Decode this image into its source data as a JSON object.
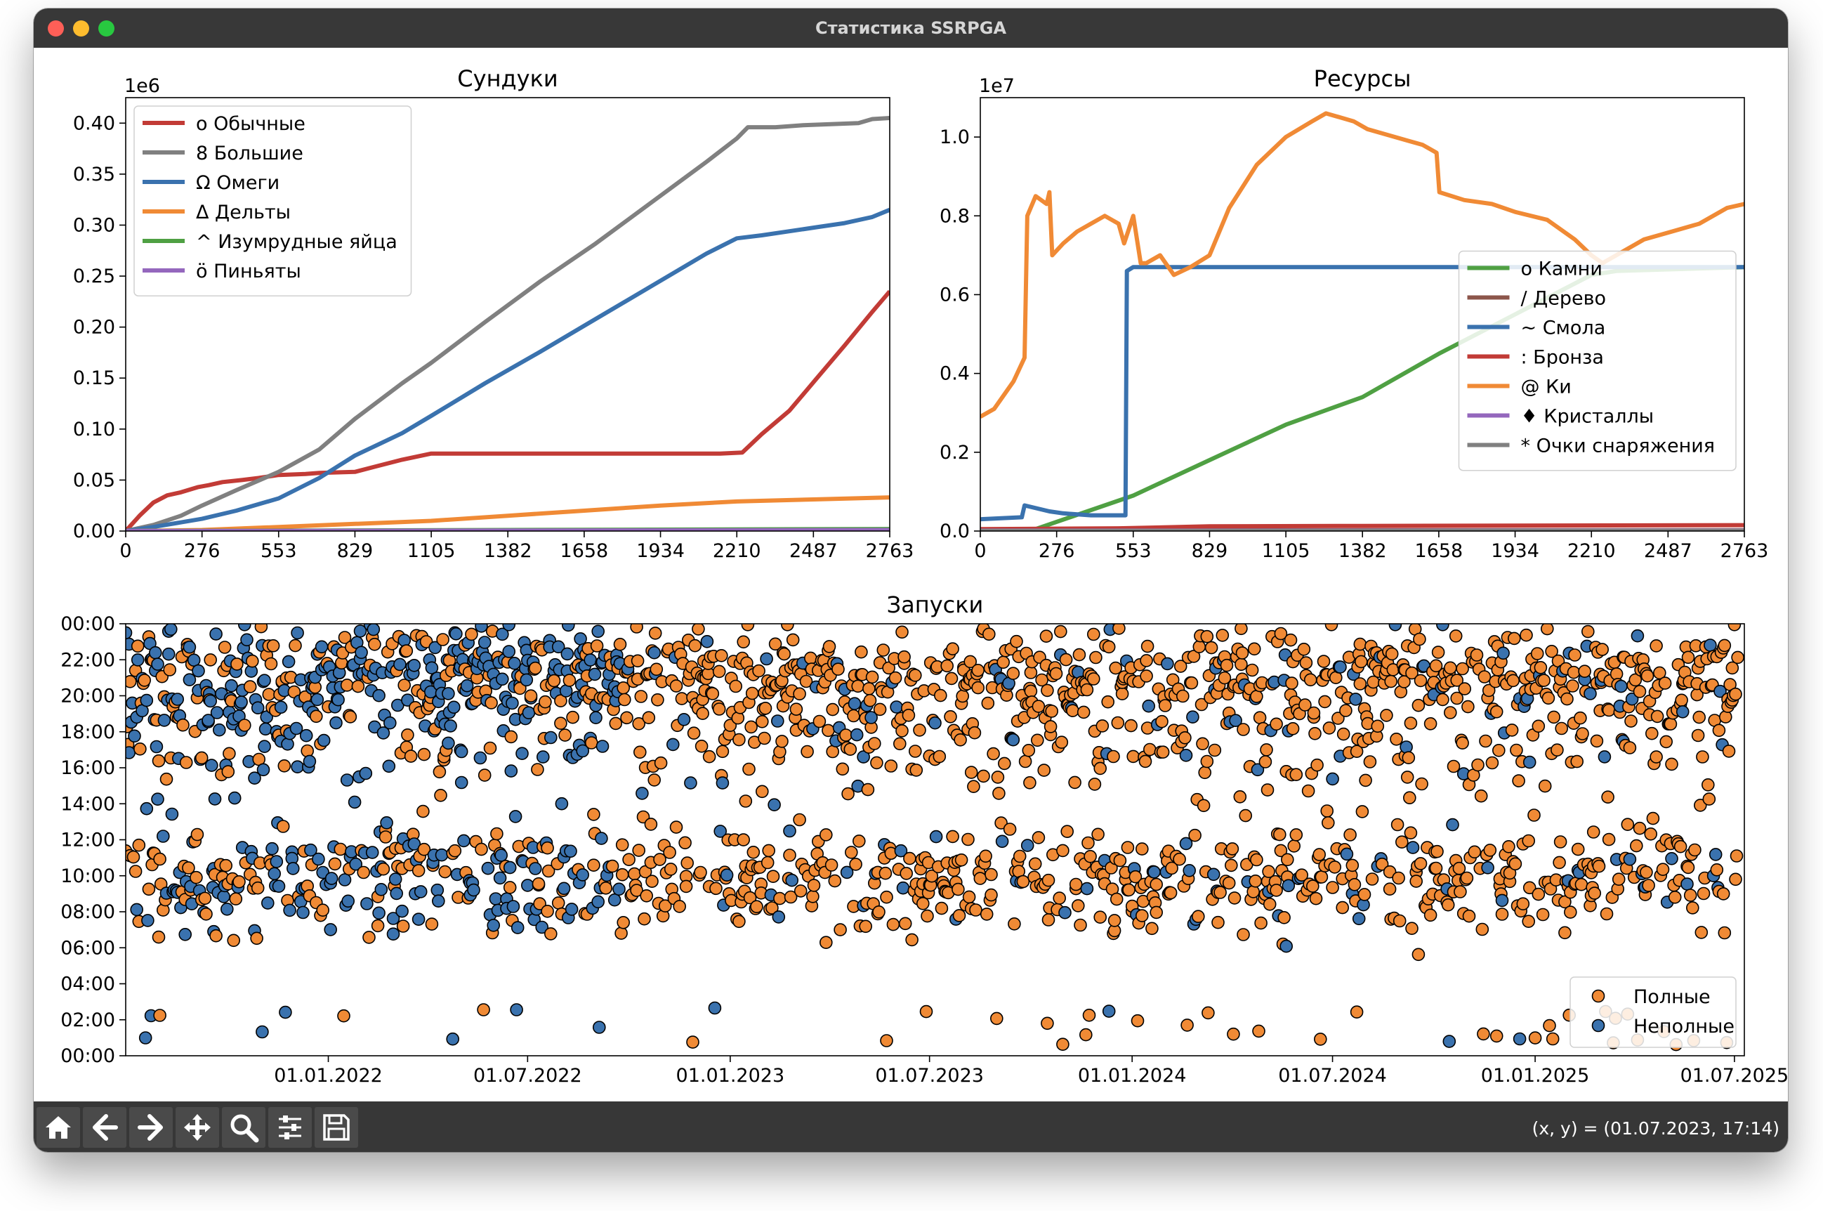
{
  "window": {
    "title": "Статистика SSRPGA"
  },
  "toolbar": {
    "buttons": [
      {
        "name": "home-icon"
      },
      {
        "name": "back-icon"
      },
      {
        "name": "forward-icon"
      },
      {
        "name": "pan-icon"
      },
      {
        "name": "zoom-icon"
      },
      {
        "name": "configure-icon"
      },
      {
        "name": "save-icon"
      }
    ],
    "coords": "(x, y) = (01.07.2023, 17:14)"
  },
  "chart_data": [
    {
      "type": "line",
      "title": "Сундуки",
      "offset_label": "1e6",
      "xlim": [
        0,
        2763
      ],
      "ylim": [
        0,
        0.425
      ],
      "xticks": [
        0,
        276,
        553,
        829,
        1105,
        1382,
        1658,
        1934,
        2210,
        2487,
        2763
      ],
      "yticks": [
        "0.00",
        "0.05",
        "0.10",
        "0.15",
        "0.20",
        "0.25",
        "0.30",
        "0.35",
        "0.40"
      ],
      "legend_position": "upper-left",
      "series": [
        {
          "name": "о Обычные",
          "color": "#c23b36",
          "x": [
            0,
            50,
            100,
            150,
            200,
            260,
            300,
            350,
            420,
            480,
            553,
            650,
            700,
            829,
            900,
            1000,
            1105,
            1200,
            1400,
            1600,
            1800,
            2000,
            2150,
            2230,
            2300,
            2400,
            2500,
            2600,
            2700,
            2763
          ],
          "y": [
            0,
            0.015,
            0.028,
            0.035,
            0.038,
            0.043,
            0.045,
            0.048,
            0.05,
            0.052,
            0.055,
            0.056,
            0.057,
            0.058,
            0.063,
            0.07,
            0.076,
            0.076,
            0.076,
            0.076,
            0.076,
            0.076,
            0.076,
            0.077,
            0.095,
            0.118,
            0.15,
            0.182,
            0.215,
            0.235
          ]
        },
        {
          "name": "8 Большие",
          "color": "#808080",
          "x": [
            0,
            100,
            200,
            276,
            400,
            553,
            700,
            829,
            1000,
            1105,
            1300,
            1500,
            1700,
            1900,
            2100,
            2210,
            2250,
            2350,
            2450,
            2550,
            2650,
            2700,
            2763
          ],
          "y": [
            0,
            0.006,
            0.015,
            0.025,
            0.04,
            0.058,
            0.08,
            0.11,
            0.145,
            0.165,
            0.205,
            0.245,
            0.282,
            0.322,
            0.362,
            0.385,
            0.396,
            0.396,
            0.398,
            0.399,
            0.4,
            0.404,
            0.405
          ]
        },
        {
          "name": "Ω Омеги",
          "color": "#3a72ae",
          "x": [
            0,
            100,
            276,
            400,
            553,
            700,
            829,
            1000,
            1105,
            1300,
            1500,
            1700,
            1900,
            2100,
            2210,
            2300,
            2400,
            2500,
            2600,
            2700,
            2763
          ],
          "y": [
            0,
            0.004,
            0.012,
            0.02,
            0.032,
            0.052,
            0.074,
            0.096,
            0.113,
            0.145,
            0.176,
            0.208,
            0.24,
            0.272,
            0.287,
            0.29,
            0.294,
            0.298,
            0.302,
            0.308,
            0.315
          ]
        },
        {
          "name": "Δ Дельты",
          "color": "#f08a35",
          "x": [
            0,
            276,
            553,
            829,
            1105,
            1382,
            1658,
            1934,
            2210,
            2487,
            2763
          ],
          "y": [
            0,
            0.001,
            0.004,
            0.007,
            0.01,
            0.015,
            0.02,
            0.025,
            0.029,
            0.031,
            0.033
          ]
        },
        {
          "name": "^ Изумрудные яйца",
          "color": "#4fa043",
          "x": [
            0,
            1382,
            2763
          ],
          "y": [
            0,
            0.001,
            0.002
          ]
        },
        {
          "name": "ö Пиньяты",
          "color": "#9467bd",
          "x": [
            0,
            1382,
            2763
          ],
          "y": [
            0,
            0.0005,
            0.001
          ]
        }
      ]
    },
    {
      "type": "line",
      "title": "Ресурсы",
      "offset_label": "1e7",
      "xlim": [
        0,
        2763
      ],
      "ylim": [
        0,
        1.1
      ],
      "xticks": [
        0,
        276,
        553,
        829,
        1105,
        1382,
        1658,
        1934,
        2210,
        2487,
        2763
      ],
      "yticks": [
        "0.0",
        "0.2",
        "0.4",
        "0.6",
        "0.8",
        "1.0"
      ],
      "legend_position": "center-right",
      "series": [
        {
          "name": "о Камни",
          "color": "#4fa043",
          "x": [
            0,
            150,
            200,
            553,
            829,
            1105,
            1382,
            1658,
            1934,
            2210,
            2300,
            2763
          ],
          "y": [
            0,
            0,
            0.005,
            0.09,
            0.18,
            0.27,
            0.34,
            0.45,
            0.55,
            0.65,
            0.66,
            0.67
          ]
        },
        {
          "name": "/ Дерево",
          "color": "#8c564b",
          "x": [
            0,
            2763
          ],
          "y": [
            0.002,
            0.002
          ]
        },
        {
          "name": "~ Смола",
          "color": "#3a72ae",
          "x": [
            0,
            150,
            160,
            250,
            300,
            400,
            525,
            530,
            553,
            800,
            1382,
            2210,
            2763
          ],
          "y": [
            0.03,
            0.035,
            0.065,
            0.05,
            0.045,
            0.04,
            0.04,
            0.66,
            0.67,
            0.67,
            0.67,
            0.67,
            0.67
          ]
        },
        {
          "name": ": Бронза",
          "color": "#c23b36",
          "x": [
            0,
            500,
            829,
            1382,
            2763
          ],
          "y": [
            0.005,
            0.007,
            0.012,
            0.013,
            0.015
          ]
        },
        {
          "name": "@ Ки",
          "color": "#f08a35",
          "x": [
            0,
            50,
            120,
            160,
            170,
            200,
            240,
            250,
            260,
            300,
            350,
            400,
            450,
            500,
            520,
            553,
            580,
            600,
            650,
            700,
            760,
            829,
            900,
            1000,
            1105,
            1200,
            1250,
            1300,
            1350,
            1400,
            1500,
            1550,
            1600,
            1650,
            1660,
            1750,
            1850,
            1934,
            2050,
            2150,
            2210,
            2250,
            2300,
            2400,
            2500,
            2600,
            2700,
            2763
          ],
          "y": [
            0.29,
            0.31,
            0.38,
            0.44,
            0.8,
            0.85,
            0.83,
            0.86,
            0.7,
            0.73,
            0.76,
            0.78,
            0.8,
            0.78,
            0.73,
            0.8,
            0.68,
            0.68,
            0.7,
            0.65,
            0.67,
            0.7,
            0.82,
            0.93,
            1.0,
            1.04,
            1.06,
            1.05,
            1.04,
            1.02,
            1.0,
            0.99,
            0.98,
            0.96,
            0.86,
            0.84,
            0.83,
            0.81,
            0.79,
            0.74,
            0.7,
            0.68,
            0.7,
            0.74,
            0.76,
            0.78,
            0.82,
            0.83
          ]
        },
        {
          "name": "♦ Кристаллы",
          "color": "#9467bd",
          "x": [
            0,
            2763
          ],
          "y": [
            0.001,
            0.001
          ]
        },
        {
          "name": "* Очки снаряжения",
          "color": "#808080",
          "x": [
            0,
            2763
          ],
          "y": [
            0.0005,
            0.0005
          ]
        }
      ]
    },
    {
      "type": "scatter",
      "title": "Запуски",
      "xlabel": "",
      "ylabel": "",
      "xlim": [
        "2021-07-01",
        "2025-07-10"
      ],
      "ylim": [
        "00:00",
        "24:00"
      ],
      "xticks": [
        "01.01.2022",
        "01.07.2022",
        "01.01.2023",
        "01.07.2023",
        "01.01.2024",
        "01.07.2024",
        "01.01.2025",
        "01.07.2025"
      ],
      "yticks": [
        "00:00",
        "02:00",
        "04:00",
        "06:00",
        "08:00",
        "10:00",
        "12:00",
        "14:00",
        "16:00",
        "18:00",
        "20:00",
        "22:00",
        "00:00"
      ],
      "legend_position": "lower-right",
      "series": [
        {
          "name": "Полные",
          "color": "#f08a35",
          "points": "dense clusters around 22:00, 17:00–20:00, 07:00–12:00 with sparse points near 00:00–02:00"
        },
        {
          "name": "Неполные",
          "color": "#3a72ae",
          "points": "dense 2021–2022 around 16:00–23:00 and 08:00–12:00; sparse thereafter"
        }
      ]
    }
  ]
}
